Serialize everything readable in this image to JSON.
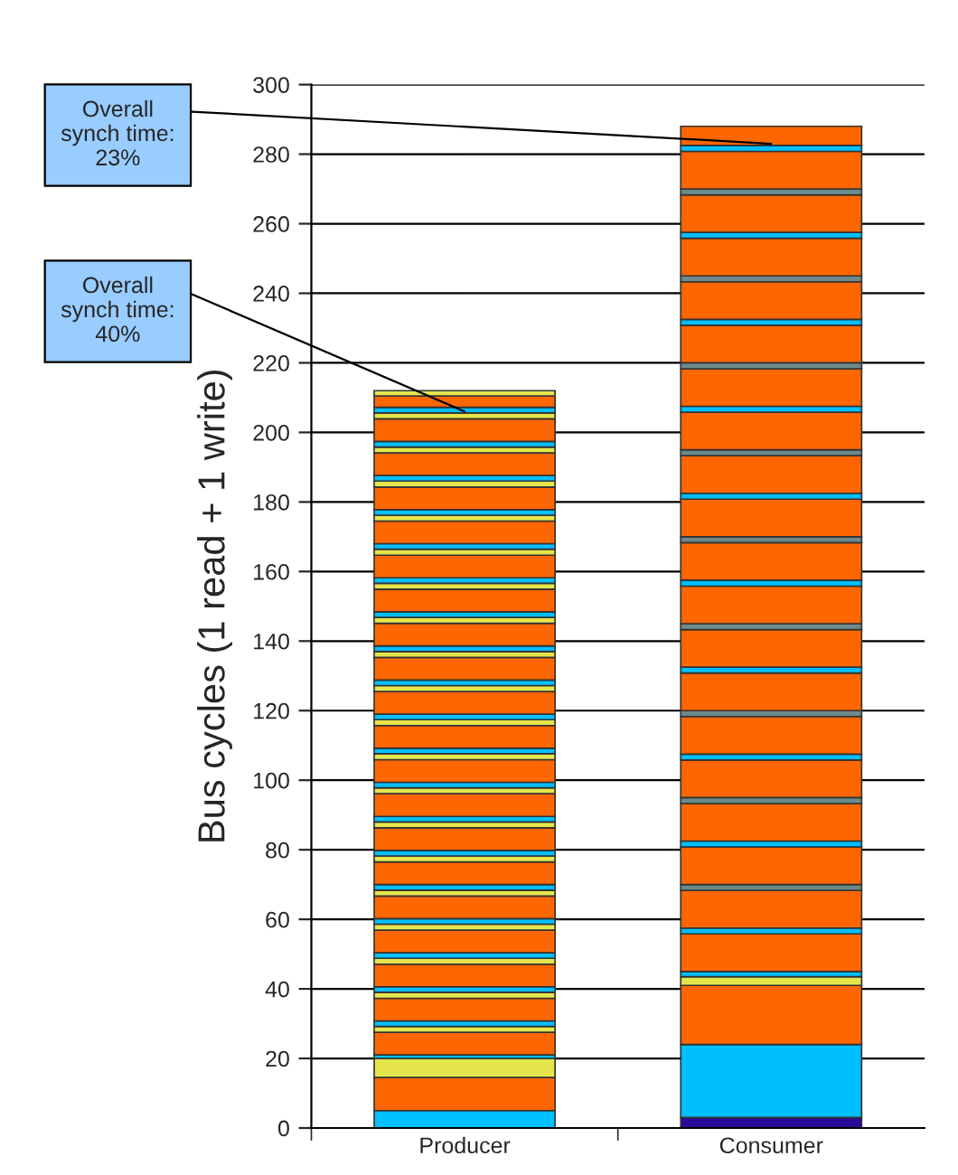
{
  "chart_data": {
    "type": "bar",
    "stacked": true,
    "ylabel": "Bus cycles (1 read + 1 write)",
    "categories": [
      "Producer",
      "Consumer"
    ],
    "ylim": [
      0,
      300
    ],
    "yticks": [
      0,
      20,
      40,
      60,
      80,
      100,
      120,
      140,
      160,
      180,
      200,
      220,
      240,
      260,
      280,
      300
    ],
    "grid": "y",
    "legend": false,
    "annotations": [
      {
        "text": "Overall\nsynch time:\n23%",
        "x": "Consumer",
        "y": 283
      },
      {
        "text": "Overall\nsynch time:\n40%",
        "x": "Producer",
        "y": 206
      }
    ],
    "series": [
      {
        "values": [
          5,
          3
        ],
        "colors": [
          "#00bfff",
          "#2a0a99"
        ]
      },
      {
        "values": [
          9.5,
          21
        ],
        "colors": [
          "#ff6600",
          "#00bfff"
        ]
      },
      {
        "values": [
          5.5,
          17
        ],
        "colors": [
          "#e5e54c",
          "#ff6600"
        ]
      },
      {
        "values": [
          1,
          2.5
        ],
        "colors": [
          "#00bfff",
          "#e5e54c"
        ]
      },
      {
        "values": [
          6.5,
          1.5
        ],
        "colors": [
          "#ff6600",
          "#00bfff"
        ]
      },
      {
        "values": [
          1.7,
          10.8
        ],
        "colors": [
          "#e5e54c",
          "#ff6600"
        ]
      },
      {
        "values": [
          1.6,
          1.7
        ],
        "colors": [
          "#00bfff",
          "#00bfff"
        ]
      },
      {
        "values": [
          6.5,
          10.8
        ],
        "colors": [
          "#ff6600",
          "#ff6600"
        ]
      },
      {
        "values": [
          1.7,
          1.7
        ],
        "colors": [
          "#e5e54c",
          "#6e8b8b"
        ]
      },
      {
        "values": [
          1.6,
          10.8
        ],
        "colors": [
          "#00bfff",
          "#ff6600"
        ]
      },
      {
        "values": [
          6.5,
          1.7
        ],
        "colors": [
          "#ff6600",
          "#00bfff"
        ]
      },
      {
        "values": [
          1.7,
          10.8
        ],
        "colors": [
          "#e5e54c",
          "#ff6600"
        ]
      },
      {
        "values": [
          1.6,
          1.7
        ],
        "colors": [
          "#00bfff",
          "#6e8b8b"
        ]
      },
      {
        "values": [
          6.5,
          10.8
        ],
        "colors": [
          "#ff6600",
          "#ff6600"
        ]
      },
      {
        "values": [
          1.7,
          1.7
        ],
        "colors": [
          "#e5e54c",
          "#00bfff"
        ]
      },
      {
        "values": [
          1.6,
          10.8
        ],
        "colors": [
          "#00bfff",
          "#ff6600"
        ]
      },
      {
        "values": [
          6.5,
          1.7
        ],
        "colors": [
          "#ff6600",
          "#6e8b8b"
        ]
      },
      {
        "values": [
          1.7,
          10.8
        ],
        "colors": [
          "#e5e54c",
          "#ff6600"
        ]
      },
      {
        "values": [
          1.6,
          1.7
        ],
        "colors": [
          "#00bfff",
          "#00bfff"
        ]
      },
      {
        "values": [
          6.5,
          10.8
        ],
        "colors": [
          "#ff6600",
          "#ff6600"
        ]
      },
      {
        "values": [
          1.7,
          1.7
        ],
        "colors": [
          "#e5e54c",
          "#6e8b8b"
        ]
      },
      {
        "values": [
          1.6,
          10.8
        ],
        "colors": [
          "#00bfff",
          "#ff6600"
        ]
      },
      {
        "values": [
          6.5,
          1.7
        ],
        "colors": [
          "#ff6600",
          "#00bfff"
        ]
      },
      {
        "values": [
          1.7,
          10.8
        ],
        "colors": [
          "#e5e54c",
          "#ff6600"
        ]
      },
      {
        "values": [
          1.6,
          1.7
        ],
        "colors": [
          "#00bfff",
          "#6e8b8b"
        ]
      },
      {
        "values": [
          6.5,
          10.8
        ],
        "colors": [
          "#ff6600",
          "#ff6600"
        ]
      },
      {
        "values": [
          1.7,
          1.7
        ],
        "colors": [
          "#e5e54c",
          "#00bfff"
        ]
      },
      {
        "values": [
          1.6,
          10.8
        ],
        "colors": [
          "#00bfff",
          "#ff6600"
        ]
      },
      {
        "values": [
          6.5,
          1.7
        ],
        "colors": [
          "#ff6600",
          "#6e8b8b"
        ]
      },
      {
        "values": [
          1.7,
          10.8
        ],
        "colors": [
          "#e5e54c",
          "#ff6600"
        ]
      },
      {
        "values": [
          1.6,
          1.7
        ],
        "colors": [
          "#00bfff",
          "#00bfff"
        ]
      },
      {
        "values": [
          6.5,
          10.8
        ],
        "colors": [
          "#ff6600",
          "#ff6600"
        ]
      },
      {
        "values": [
          1.7,
          1.7
        ],
        "colors": [
          "#e5e54c",
          "#6e8b8b"
        ]
      },
      {
        "values": [
          1.6,
          10.8
        ],
        "colors": [
          "#00bfff",
          "#ff6600"
        ]
      },
      {
        "values": [
          6.5,
          1.7
        ],
        "colors": [
          "#ff6600",
          "#00bfff"
        ]
      },
      {
        "values": [
          1.7,
          10.8
        ],
        "colors": [
          "#e5e54c",
          "#ff6600"
        ]
      },
      {
        "values": [
          1.6,
          1.7
        ],
        "colors": [
          "#00bfff",
          "#6e8b8b"
        ]
      },
      {
        "values": [
          6.5,
          10.8
        ],
        "colors": [
          "#ff6600",
          "#ff6600"
        ]
      },
      {
        "values": [
          1.7,
          1.7
        ],
        "colors": [
          "#e5e54c",
          "#00bfff"
        ]
      },
      {
        "values": [
          1.6,
          10.8
        ],
        "colors": [
          "#00bfff",
          "#ff6600"
        ]
      },
      {
        "values": [
          6.5,
          1.7
        ],
        "colors": [
          "#ff6600",
          "#6e8b8b"
        ]
      },
      {
        "values": [
          1.7,
          10.8
        ],
        "colors": [
          "#e5e54c",
          "#ff6600"
        ]
      },
      {
        "values": [
          1.6,
          1.7
        ],
        "colors": [
          "#00bfff",
          "#00bfff"
        ]
      },
      {
        "values": [
          6.5,
          5.5
        ],
        "colors": [
          "#ff6600",
          "#ff6600"
        ]
      },
      {
        "values": [
          1.7,
          null
        ],
        "colors": [
          "#e5e54c",
          null
        ]
      },
      {
        "values": [
          1.6,
          null
        ],
        "colors": [
          "#00bfff",
          null
        ]
      },
      {
        "values": [
          6.5,
          null
        ],
        "colors": [
          "#ff6600",
          null
        ]
      },
      {
        "values": [
          1.7,
          null
        ],
        "colors": [
          "#e5e54c",
          null
        ]
      },
      {
        "values": [
          1.6,
          null
        ],
        "colors": [
          "#00bfff",
          null
        ]
      },
      {
        "values": [
          6.5,
          null
        ],
        "colors": [
          "#ff6600",
          null
        ]
      },
      {
        "values": [
          1.7,
          null
        ],
        "colors": [
          "#e5e54c",
          null
        ]
      },
      {
        "values": [
          1.6,
          null
        ],
        "colors": [
          "#00bfff",
          null
        ]
      },
      {
        "values": [
          6.5,
          null
        ],
        "colors": [
          "#ff6600",
          null
        ]
      },
      {
        "values": [
          1.7,
          null
        ],
        "colors": [
          "#e5e54c",
          null
        ]
      },
      {
        "values": [
          1.6,
          null
        ],
        "colors": [
          "#00bfff",
          null
        ]
      },
      {
        "values": [
          6.5,
          null
        ],
        "colors": [
          "#ff6600",
          null
        ]
      },
      {
        "values": [
          1.7,
          null
        ],
        "colors": [
          "#e5e54c",
          null
        ]
      },
      {
        "values": [
          1.6,
          null
        ],
        "colors": [
          "#00bfff",
          null
        ]
      },
      {
        "values": [
          6.5,
          null
        ],
        "colors": [
          "#ff6600",
          null
        ]
      },
      {
        "values": [
          1.7,
          null
        ],
        "colors": [
          "#e5e54c",
          null
        ]
      },
      {
        "values": [
          1.6,
          null
        ],
        "colors": [
          "#00bfff",
          null
        ]
      },
      {
        "values": [
          3.3,
          null
        ],
        "colors": [
          "#ff6600",
          null
        ]
      },
      {
        "values": [
          1.5,
          null
        ],
        "colors": [
          "#e5e54c",
          null
        ]
      }
    ]
  }
}
